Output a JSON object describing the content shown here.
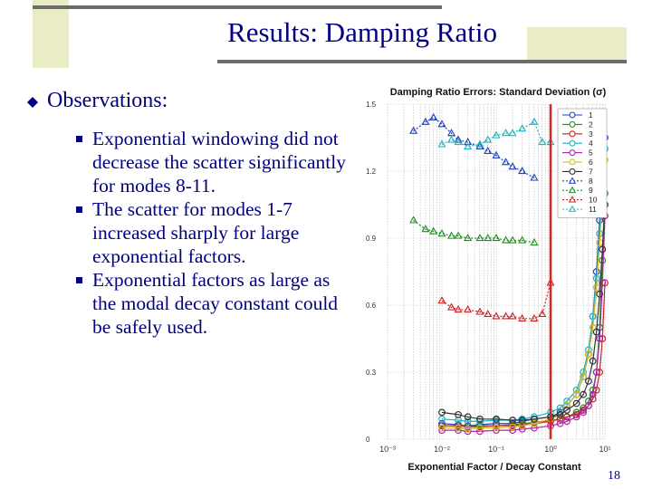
{
  "slide": {
    "title": "Results: Damping Ratio",
    "observations_heading": "Observations:",
    "bullets": [
      "Exponential windowing did not decrease the scatter significantly for modes 8-11.",
      "The scatter for modes 1-7 increased sharply for large exponential factors.",
      "Exponential factors as large as the modal decay constant could be safely used."
    ],
    "page_number": "18",
    "colors": {
      "text": "#000080",
      "accent_box": "#e9ecc4",
      "marker_line": "#dd2222"
    }
  },
  "chart_data": {
    "type": "line",
    "title": "Damping Ratio Errors: Standard Deviation (σ)",
    "xlabel": "Exponential Factor / Decay Constant",
    "ylabel": "",
    "xscale": "log",
    "xlim": [
      0.001,
      10
    ],
    "ylim": [
      0,
      1.5
    ],
    "x_ticks": [
      "10⁻³",
      "10⁻²",
      "10⁻¹",
      "10⁰",
      "10¹"
    ],
    "y_ticks": [
      "0",
      "0.3",
      "0.6",
      "0.9",
      "1.2",
      "1.5"
    ],
    "vertical_marker_x": 1,
    "legend_position": "top-right",
    "series": [
      {
        "name": "1",
        "color": "#1f3fbf",
        "marker": "circle",
        "x": [
          0.01,
          0.02,
          0.03,
          0.05,
          0.1,
          0.2,
          0.3,
          0.5,
          1,
          1.5,
          2,
          3,
          4,
          5,
          6,
          7,
          8,
          9,
          10
        ],
        "y": [
          0.07,
          0.065,
          0.06,
          0.065,
          0.07,
          0.07,
          0.08,
          0.09,
          0.1,
          0.12,
          0.15,
          0.2,
          0.28,
          0.38,
          0.55,
          0.75,
          0.98,
          1.2,
          1.35
        ]
      },
      {
        "name": "2",
        "color": "#1f8f1f",
        "marker": "circle",
        "x": [
          0.01,
          0.02,
          0.03,
          0.05,
          0.1,
          0.2,
          0.3,
          0.5,
          1,
          1.5,
          2,
          3,
          4,
          5,
          6,
          7,
          8,
          9,
          10
        ],
        "y": [
          0.06,
          0.058,
          0.055,
          0.06,
          0.06,
          0.065,
          0.07,
          0.075,
          0.085,
          0.09,
          0.1,
          0.12,
          0.14,
          0.17,
          0.22,
          0.3,
          0.5,
          0.8,
          1.1
        ]
      },
      {
        "name": "3",
        "color": "#cc2222",
        "marker": "circle",
        "x": [
          0.01,
          0.02,
          0.03,
          0.05,
          0.1,
          0.2,
          0.3,
          0.5,
          1,
          1.5,
          2,
          3,
          4,
          5,
          6,
          7,
          8,
          9,
          10
        ],
        "y": [
          0.06,
          0.06,
          0.055,
          0.055,
          0.06,
          0.06,
          0.065,
          0.07,
          0.08,
          0.09,
          0.1,
          0.11,
          0.13,
          0.15,
          0.18,
          0.22,
          0.3,
          0.45,
          0.7
        ]
      },
      {
        "name": "4",
        "color": "#19b5c4",
        "marker": "circle",
        "x": [
          0.01,
          0.02,
          0.03,
          0.05,
          0.1,
          0.2,
          0.3,
          0.5,
          1,
          1.5,
          2,
          3,
          4,
          5,
          6,
          7,
          8,
          9,
          10
        ],
        "y": [
          0.09,
          0.085,
          0.08,
          0.08,
          0.085,
          0.085,
          0.09,
          0.1,
          0.12,
          0.14,
          0.17,
          0.22,
          0.3,
          0.4,
          0.55,
          0.72,
          0.92,
          1.12,
          1.3
        ]
      },
      {
        "name": "5",
        "color": "#b022b0",
        "marker": "circle",
        "x": [
          0.01,
          0.02,
          0.03,
          0.05,
          0.1,
          0.2,
          0.3,
          0.5,
          1,
          1.5,
          2,
          3,
          4,
          5,
          6,
          7,
          8,
          9,
          10
        ],
        "y": [
          0.04,
          0.04,
          0.035,
          0.035,
          0.04,
          0.04,
          0.045,
          0.05,
          0.06,
          0.07,
          0.08,
          0.1,
          0.12,
          0.15,
          0.2,
          0.3,
          0.45,
          0.7,
          1.0
        ]
      },
      {
        "name": "6",
        "color": "#d6b51f",
        "marker": "circle",
        "x": [
          0.01,
          0.02,
          0.03,
          0.05,
          0.1,
          0.2,
          0.3,
          0.5,
          1,
          1.5,
          2,
          3,
          4,
          5,
          6,
          7,
          8,
          9,
          10
        ],
        "y": [
          0.05,
          0.05,
          0.045,
          0.05,
          0.05,
          0.055,
          0.06,
          0.07,
          0.09,
          0.11,
          0.15,
          0.2,
          0.28,
          0.38,
          0.5,
          0.68,
          0.88,
          1.08,
          1.25
        ]
      },
      {
        "name": "7",
        "color": "#333333",
        "marker": "circle",
        "x": [
          0.01,
          0.02,
          0.03,
          0.05,
          0.1,
          0.2,
          0.3,
          0.5,
          1,
          1.5,
          2,
          3,
          4,
          5,
          6,
          7,
          8,
          9,
          10
        ],
        "y": [
          0.12,
          0.11,
          0.1,
          0.09,
          0.09,
          0.085,
          0.085,
          0.09,
          0.1,
          0.11,
          0.13,
          0.16,
          0.2,
          0.26,
          0.35,
          0.48,
          0.65,
          0.85,
          1.05
        ]
      },
      {
        "name": "8",
        "color": "#1f3fbf",
        "marker": "triangle",
        "dashed": true,
        "x": [
          0.003,
          0.005,
          0.007,
          0.01,
          0.015,
          0.02,
          0.03,
          0.05,
          0.07,
          0.1,
          0.15,
          0.2,
          0.3,
          0.5
        ],
        "y": [
          1.38,
          1.42,
          1.44,
          1.41,
          1.37,
          1.34,
          1.33,
          1.31,
          1.29,
          1.27,
          1.24,
          1.22,
          1.2,
          1.17
        ]
      },
      {
        "name": "9",
        "color": "#1f8f1f",
        "marker": "triangle",
        "dashed": true,
        "x": [
          0.003,
          0.005,
          0.007,
          0.01,
          0.015,
          0.02,
          0.03,
          0.05,
          0.07,
          0.1,
          0.15,
          0.2,
          0.3,
          0.5
        ],
        "y": [
          0.98,
          0.94,
          0.93,
          0.92,
          0.91,
          0.91,
          0.9,
          0.9,
          0.9,
          0.9,
          0.89,
          0.89,
          0.89,
          0.88
        ]
      },
      {
        "name": "10",
        "color": "#cc2222",
        "marker": "triangle",
        "dashed": true,
        "x": [
          0.01,
          0.015,
          0.02,
          0.03,
          0.05,
          0.07,
          0.1,
          0.15,
          0.2,
          0.3,
          0.5,
          0.7,
          1
        ],
        "y": [
          0.62,
          0.59,
          0.58,
          0.58,
          0.57,
          0.56,
          0.55,
          0.55,
          0.55,
          0.54,
          0.54,
          0.56,
          0.7
        ]
      },
      {
        "name": "11",
        "color": "#19b5c4",
        "marker": "triangle",
        "dashed": true,
        "x": [
          0.01,
          0.015,
          0.02,
          0.03,
          0.05,
          0.07,
          0.1,
          0.15,
          0.2,
          0.3,
          0.5,
          0.7,
          1
        ],
        "y": [
          1.32,
          1.34,
          1.33,
          1.31,
          1.32,
          1.34,
          1.36,
          1.37,
          1.37,
          1.39,
          1.42,
          1.33,
          1.33
        ]
      }
    ]
  }
}
